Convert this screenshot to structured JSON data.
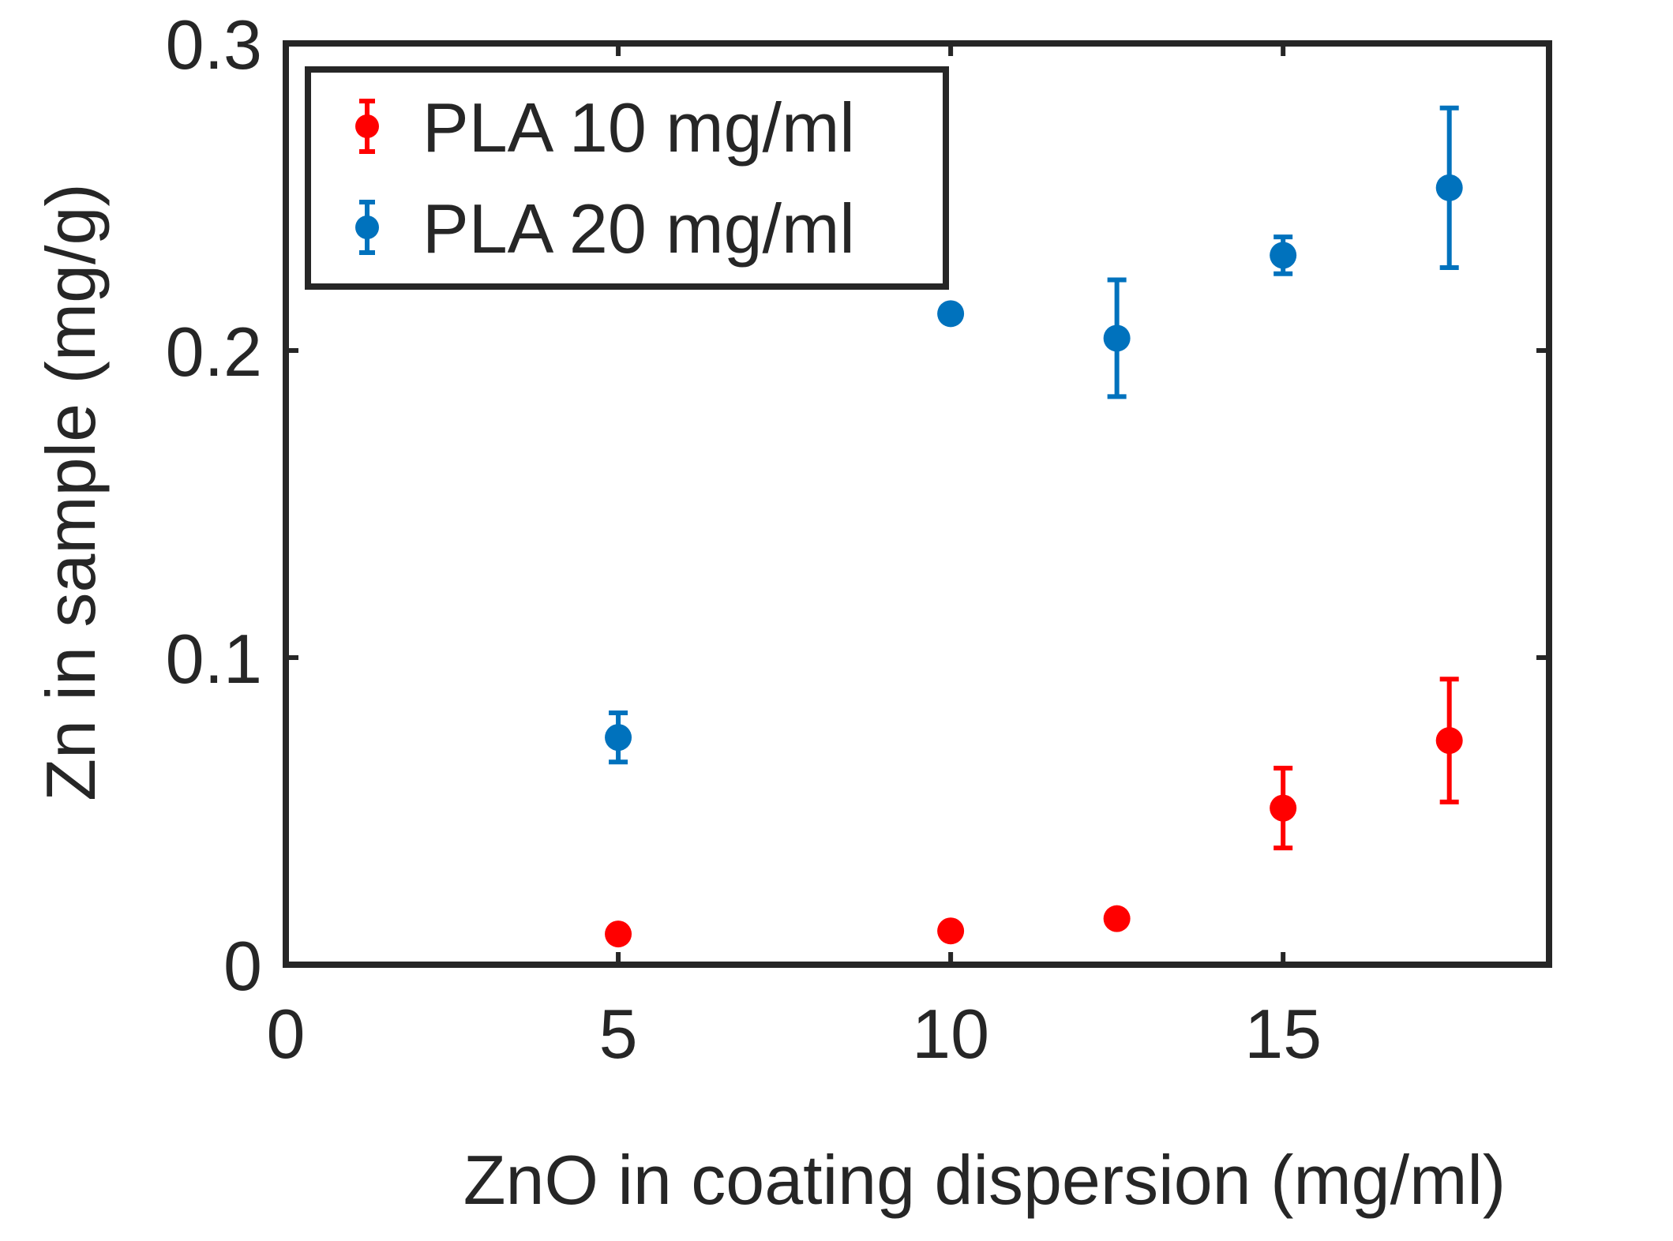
{
  "chart_data": {
    "type": "scatter",
    "title": "",
    "xlabel": "ZnO in coating dispersion (mg/ml)",
    "ylabel": "Zn in sample (mg/g)",
    "xlim": [
      0,
      19
    ],
    "ylim": [
      0,
      0.3
    ],
    "xticks": [
      0,
      5,
      10,
      15
    ],
    "xtick_labels": [
      "0",
      "5",
      "10",
      "15"
    ],
    "yticks": [
      0,
      0.1,
      0.2,
      0.3
    ],
    "ytick_labels": [
      "0",
      "0.1",
      "0.2",
      "0.3"
    ],
    "grid": false,
    "legend_position": "top-left",
    "series": [
      {
        "name": "PLA 10 mg/ml",
        "color": "#ff0000",
        "x": [
          5,
          10,
          12.5,
          15,
          17.5
        ],
        "y": [
          0.01,
          0.011,
          0.015,
          0.051,
          0.073
        ],
        "err": [
          0,
          0,
          0,
          0.013,
          0.02
        ]
      },
      {
        "name": "PLA 20 mg/ml",
        "color": "#0072bd",
        "x": [
          5,
          10,
          12.5,
          15,
          17.5
        ],
        "y": [
          0.074,
          0.212,
          0.204,
          0.231,
          0.253
        ],
        "err": [
          0.008,
          0,
          0.019,
          0.006,
          0.026
        ]
      }
    ]
  }
}
